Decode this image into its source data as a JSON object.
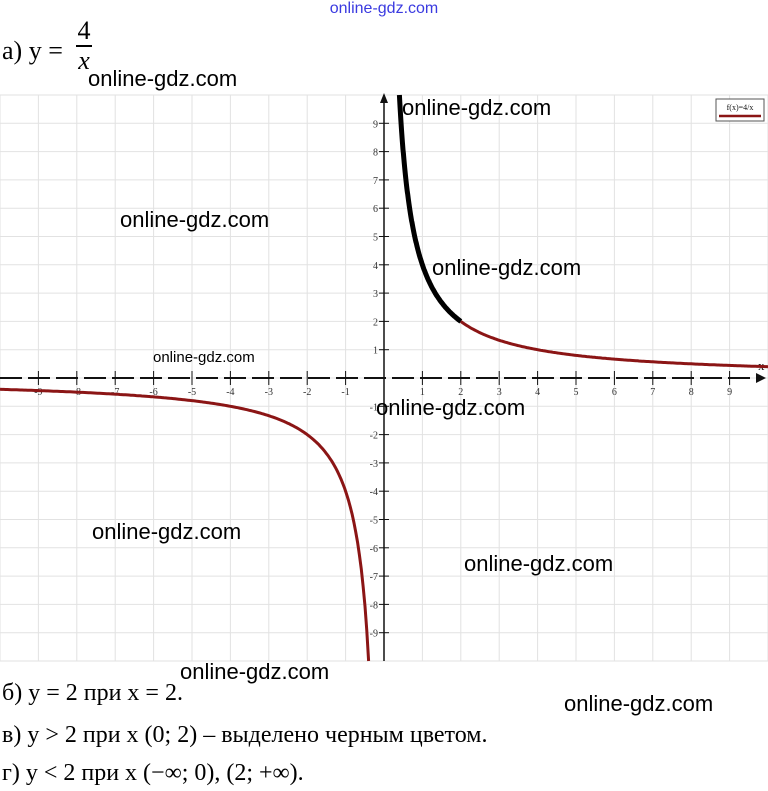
{
  "watermark_top": "online-gdz.com",
  "watermarks": [
    "online-gdz.com",
    "online-gdz.com",
    "online-gdz.com",
    "online-gdz.com",
    "online-gdz.com",
    "online-gdz.com",
    "online-gdz.com",
    "online-gdz.com",
    "online-gdz.com",
    "online-gdz.com"
  ],
  "part_a": {
    "label": "а) y =",
    "numerator": "4",
    "denominator": "x"
  },
  "answers": {
    "b": "б) y = 2 при x = 2.",
    "v": "в) y > 2 при x (0; 2) – выделено черным цветом.",
    "g": "г) y < 2 при x (−∞; 0), (2; +∞)."
  },
  "chart_data": {
    "type": "line",
    "function": "f(x)=4/x",
    "legend": "f(x)=4/x",
    "legend_position": "top-right",
    "xlabel": "x",
    "xlim": [
      -10,
      10
    ],
    "ylim": [
      -10,
      10
    ],
    "xticks": [
      -9,
      -8,
      -7,
      -6,
      -5,
      -4,
      -3,
      -2,
      -1,
      1,
      2,
      3,
      4,
      5,
      6,
      7,
      8,
      9
    ],
    "yticks": [
      -9,
      -8,
      -7,
      -6,
      -5,
      -4,
      -3,
      -2,
      -1,
      1,
      2,
      3,
      4,
      5,
      6,
      7,
      8,
      9
    ],
    "grid": true,
    "series": [
      {
        "x_range": [
          -10,
          -0.4
        ],
        "color": "#8b1515"
      },
      {
        "x_range": [
          0.4,
          2
        ],
        "color": "#000000",
        "highlighted": true
      },
      {
        "x_range": [
          2,
          10
        ],
        "color": "#8b1515"
      }
    ]
  }
}
